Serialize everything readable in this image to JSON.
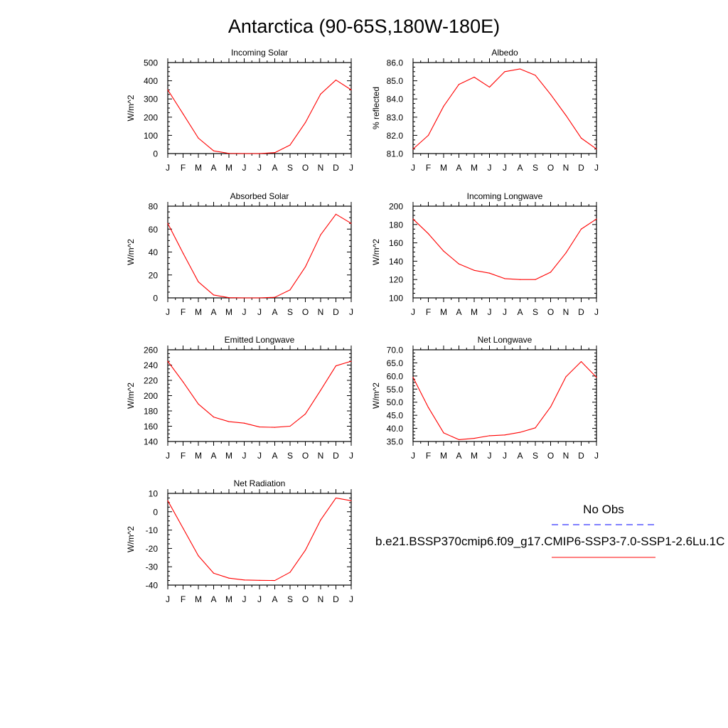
{
  "figure": {
    "title": "Antarctica (90-65S,180W-180E)"
  },
  "legend": {
    "obs_label": "No Obs",
    "model_label": "b.e21.BSSP370cmip6.f09_g17.CMIP6-SSP3-7.0-SSP1-2.6Lu.1C",
    "obs_color": "#0000ff",
    "model_color": "#ff0000"
  },
  "chart_data": [
    {
      "type": "line",
      "title": "Incoming Solar",
      "ylabel": "W/m^2",
      "x": [
        "J",
        "F",
        "M",
        "A",
        "M",
        "J",
        "J",
        "A",
        "S",
        "O",
        "N",
        "D",
        "J"
      ],
      "ylim": [
        0,
        500
      ],
      "yticks": [
        0,
        100,
        200,
        300,
        400,
        500
      ],
      "ytick_labels": [
        "0",
        "100",
        "200",
        "300",
        "400",
        "500"
      ],
      "series": [
        {
          "values": [
            350,
            218,
            85,
            15,
            1,
            0,
            0,
            5,
            47,
            170,
            327,
            404,
            350
          ]
        }
      ]
    },
    {
      "type": "line",
      "title": "Albedo",
      "ylabel": "% reflected",
      "x": [
        "J",
        "F",
        "M",
        "A",
        "M",
        "J",
        "J",
        "A",
        "S",
        "O",
        "N",
        "D",
        "J"
      ],
      "ylim": [
        81.0,
        86.0
      ],
      "yticks": [
        81,
        82,
        83,
        84,
        85,
        86
      ],
      "ytick_labels": [
        "81.0",
        "82.0",
        "83.0",
        "84.0",
        "85.0",
        "86.0"
      ],
      "series": [
        {
          "values": [
            81.25,
            82.0,
            83.6,
            84.8,
            85.2,
            84.65,
            85.5,
            85.65,
            85.3,
            84.25,
            83.1,
            81.85,
            81.25
          ]
        }
      ]
    },
    {
      "type": "line",
      "title": "Absorbed Solar",
      "ylabel": "W/m^2",
      "x": [
        "J",
        "F",
        "M",
        "A",
        "M",
        "J",
        "J",
        "A",
        "S",
        "O",
        "N",
        "D",
        "J"
      ],
      "ylim": [
        0,
        80
      ],
      "yticks": [
        0,
        20,
        40,
        60,
        80
      ],
      "ytick_labels": [
        "0",
        "20",
        "40",
        "60",
        "80"
      ],
      "series": [
        {
          "values": [
            65,
            39,
            14,
            2.5,
            0.2,
            0,
            0,
            0.5,
            7,
            27,
            55,
            73,
            65
          ]
        }
      ]
    },
    {
      "type": "line",
      "title": "Incoming Longwave",
      "ylabel": "W/m^2",
      "x": [
        "J",
        "F",
        "M",
        "A",
        "M",
        "J",
        "J",
        "A",
        "S",
        "O",
        "N",
        "D",
        "J"
      ],
      "ylim": [
        100,
        200
      ],
      "yticks": [
        100,
        120,
        140,
        160,
        180,
        200
      ],
      "ytick_labels": [
        "100",
        "120",
        "140",
        "160",
        "180",
        "200"
      ],
      "series": [
        {
          "values": [
            186,
            170,
            151,
            137,
            130,
            127,
            121,
            120,
            120,
            128,
            149,
            175,
            186
          ]
        }
      ]
    },
    {
      "type": "line",
      "title": "Emitted Longwave",
      "ylabel": "W/m^2",
      "x": [
        "J",
        "F",
        "M",
        "A",
        "M",
        "J",
        "J",
        "A",
        "S",
        "O",
        "N",
        "D",
        "J"
      ],
      "ylim": [
        140,
        260
      ],
      "yticks": [
        140,
        160,
        180,
        200,
        220,
        240,
        260
      ],
      "ytick_labels": [
        "140",
        "160",
        "180",
        "200",
        "220",
        "240",
        "260"
      ],
      "series": [
        {
          "values": [
            245,
            218,
            189,
            172,
            166,
            164,
            159,
            158.5,
            160,
            176,
            207,
            239,
            245
          ]
        }
      ]
    },
    {
      "type": "line",
      "title": "Net Longwave",
      "ylabel": "W/m^2",
      "x": [
        "J",
        "F",
        "M",
        "A",
        "M",
        "J",
        "J",
        "A",
        "S",
        "O",
        "N",
        "D",
        "J"
      ],
      "ylim": [
        35.0,
        70.0
      ],
      "yticks": [
        35,
        40,
        45,
        50,
        55,
        60,
        65,
        70
      ],
      "ytick_labels": [
        "35.0",
        "40.0",
        "45.0",
        "50.0",
        "55.0",
        "60.0",
        "65.0",
        "70.0"
      ],
      "series": [
        {
          "values": [
            59.5,
            48,
            38.3,
            35.7,
            36.2,
            37.2,
            37.5,
            38.5,
            40.2,
            48.2,
            59.7,
            65.5,
            59.5
          ]
        }
      ]
    },
    {
      "type": "line",
      "title": "Net Radiation",
      "ylabel": "W/m^2",
      "x": [
        "J",
        "F",
        "M",
        "A",
        "M",
        "J",
        "J",
        "A",
        "S",
        "O",
        "N",
        "D",
        "J"
      ],
      "ylim": [
        -40,
        10
      ],
      "yticks": [
        -40,
        -30,
        -20,
        -10,
        0,
        10
      ],
      "ytick_labels": [
        "-40",
        "-30",
        "-20",
        "-10",
        "0",
        "10"
      ],
      "series": [
        {
          "values": [
            6,
            -9,
            -24,
            -33.5,
            -36.2,
            -37.2,
            -37.4,
            -37.5,
            -33,
            -21,
            -4.5,
            7.5,
            6
          ]
        }
      ]
    }
  ]
}
